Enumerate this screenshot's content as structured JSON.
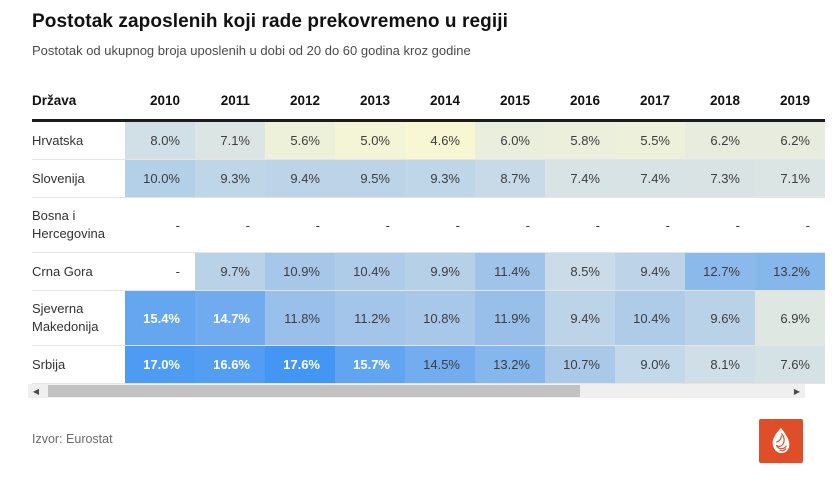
{
  "chart_data": {
    "type": "table",
    "title": "Postotak zaposlenih koji rade prekovremeno u regiji",
    "subtitle": "Postotak od ukupnog broja uposlenih u dobi od 20 do 60 godina kroz godine",
    "source": "Izvor: Eurostat",
    "row_header_label": "Država",
    "columns": [
      "2010",
      "2011",
      "2012",
      "2013",
      "2014",
      "2015",
      "2016",
      "2017",
      "2018",
      "2019"
    ],
    "missing_label": "-",
    "rows": [
      {
        "label": "Hrvatska",
        "values": [
          8.0,
          7.1,
          5.6,
          5.0,
          4.6,
          6.0,
          5.8,
          5.5,
          6.2,
          6.2
        ],
        "display": [
          "8.0%",
          "7.1%",
          "5.6%",
          "5.0%",
          "4.6%",
          "6.0%",
          "5.8%",
          "5.5%",
          "6.2%",
          "6.2%"
        ]
      },
      {
        "label": "Slovenija",
        "values": [
          10.0,
          9.3,
          9.4,
          9.5,
          9.3,
          8.7,
          7.4,
          7.4,
          7.3,
          7.1
        ],
        "display": [
          "10.0%",
          "9.3%",
          "9.4%",
          "9.5%",
          "9.3%",
          "8.7%",
          "7.4%",
          "7.4%",
          "7.3%",
          "7.1%"
        ]
      },
      {
        "label": "Bosna i Hercegovina",
        "values": [
          null,
          null,
          null,
          null,
          null,
          null,
          null,
          null,
          null,
          null
        ],
        "display": [
          "-",
          "-",
          "-",
          "-",
          "-",
          "-",
          "-",
          "-",
          "-",
          "-"
        ]
      },
      {
        "label": "Crna Gora",
        "values": [
          null,
          9.7,
          10.9,
          10.4,
          9.9,
          11.4,
          8.5,
          9.4,
          12.7,
          13.2
        ],
        "display": [
          "-",
          "9.7%",
          "10.9%",
          "10.4%",
          "9.9%",
          "11.4%",
          "8.5%",
          "9.4%",
          "12.7%",
          "13.2%"
        ]
      },
      {
        "label": "Sjeverna Makedonija",
        "values": [
          15.4,
          14.7,
          11.8,
          11.2,
          10.8,
          11.9,
          9.4,
          10.4,
          9.6,
          6.9
        ],
        "display": [
          "15.4%",
          "14.7%",
          "11.8%",
          "11.2%",
          "10.8%",
          "11.9%",
          "9.4%",
          "10.4%",
          "9.6%",
          "6.9%"
        ]
      },
      {
        "label": "Srbija",
        "values": [
          17.0,
          16.6,
          17.6,
          15.7,
          14.5,
          13.2,
          10.7,
          9.0,
          8.1,
          7.6
        ],
        "display": [
          "17.0%",
          "16.6%",
          "17.6%",
          "15.7%",
          "14.5%",
          "13.2%",
          "10.7%",
          "9.0%",
          "8.1%",
          "7.6%"
        ]
      }
    ],
    "color_scale": {
      "stops": [
        [
          4.6,
          "#f8f7d4"
        ],
        [
          6.0,
          "#e9eedd"
        ],
        [
          7.2,
          "#dae4e4"
        ],
        [
          8.5,
          "#cbdce8"
        ],
        [
          10.0,
          "#b4cfe8"
        ],
        [
          12.0,
          "#96beea"
        ],
        [
          14.0,
          "#7ab0ee"
        ],
        [
          16.0,
          "#5ca2f2"
        ],
        [
          17.6,
          "#4496f4"
        ]
      ],
      "white_text_min": 14.6,
      "missing_background": "#ffffff"
    },
    "layout": {
      "legend": "none",
      "grid": "row-separators",
      "clipped_last_column": "2019"
    }
  },
  "scrollbar": {
    "left_arrow": "◀",
    "right_arrow": "▶"
  },
  "logo": {
    "color": "#df4e28"
  }
}
